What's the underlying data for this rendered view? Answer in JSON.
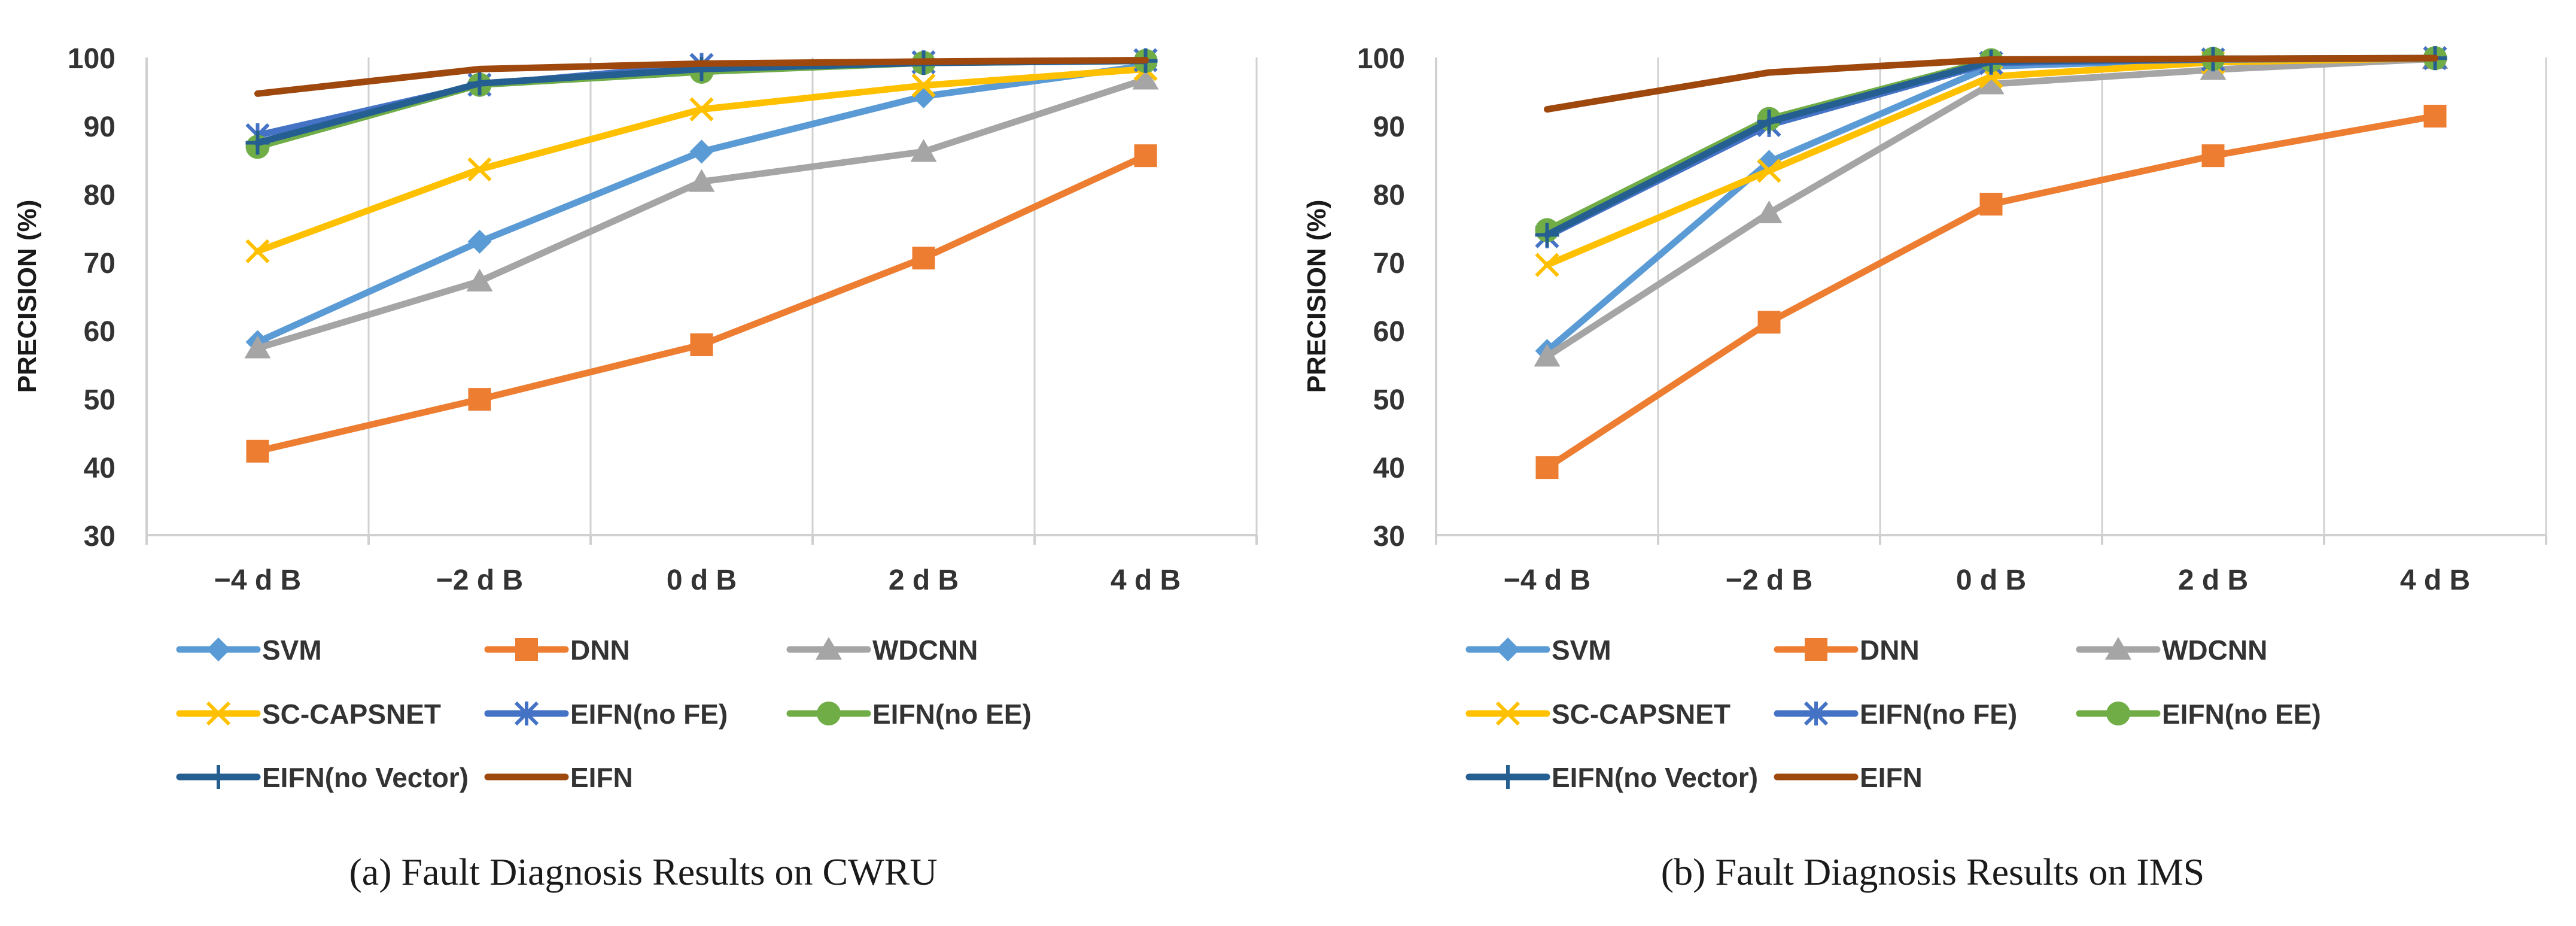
{
  "chart_data": [
    {
      "type": "line",
      "title": "",
      "caption": "(a) Fault Diagnosis Results on CWRU",
      "xlabel": "",
      "ylabel": "PRECISION (%)",
      "categories": [
        "−4 d B",
        "−2 d B",
        "0 d B",
        "2 d B",
        "4 d B"
      ],
      "ylim": [
        30,
        100
      ],
      "yticks": [
        30,
        40,
        50,
        60,
        70,
        80,
        90,
        100
      ],
      "grid": "vertical",
      "legend_position": "bottom",
      "series": [
        {
          "name": "SVM",
          "color": "#5B9BD5",
          "marker": "diamond",
          "values": [
            58.3,
            73.0,
            86.2,
            94.3,
            98.8
          ]
        },
        {
          "name": "DNN",
          "color": "#ED7D31",
          "marker": "square",
          "values": [
            42.3,
            49.9,
            57.9,
            70.6,
            85.6
          ]
        },
        {
          "name": "WDCNN",
          "color": "#A5A5A5",
          "marker": "triangle",
          "values": [
            57.4,
            67.2,
            81.8,
            86.2,
            96.8
          ]
        },
        {
          "name": "SC-CAPSNET",
          "color": "#FFC000",
          "marker": "x",
          "values": [
            71.6,
            83.6,
            92.4,
            95.9,
            98.3
          ]
        },
        {
          "name": "EIFN(no FE)",
          "color": "#4472C4",
          "marker": "star",
          "values": [
            88.6,
            96.0,
            98.9,
            99.3,
            99.6
          ]
        },
        {
          "name": "EIFN(no EE)",
          "color": "#70AD47",
          "marker": "circle",
          "values": [
            86.9,
            96.0,
            97.9,
            99.2,
            99.5
          ]
        },
        {
          "name": "EIFN(no Vector)",
          "color": "#255E91",
          "marker": "plus",
          "values": [
            87.5,
            96.2,
            98.3,
            99.2,
            99.5
          ]
        },
        {
          "name": "EIFN",
          "color": "#9E480E",
          "marker": "none",
          "values": [
            94.7,
            98.3,
            99.1,
            99.4,
            99.6
          ]
        }
      ]
    },
    {
      "type": "line",
      "title": "",
      "caption": "(b) Fault Diagnosis Results on IMS",
      "xlabel": "",
      "ylabel": "PRECISION (%)",
      "categories": [
        "−4 d B",
        "−2 d B",
        "0 d B",
        "2 d B",
        "4 d B"
      ],
      "ylim": [
        30,
        100
      ],
      "yticks": [
        30,
        40,
        50,
        60,
        70,
        80,
        90,
        100
      ],
      "grid": "vertical",
      "legend_position": "bottom",
      "series": [
        {
          "name": "SVM",
          "color": "#5B9BD5",
          "marker": "diamond",
          "values": [
            57.0,
            84.7,
            98.7,
            99.7,
            99.9
          ]
        },
        {
          "name": "DNN",
          "color": "#ED7D31",
          "marker": "square",
          "values": [
            39.9,
            61.2,
            78.5,
            85.6,
            91.4
          ]
        },
        {
          "name": "WDCNN",
          "color": "#A5A5A5",
          "marker": "triangle",
          "values": [
            56.2,
            77.2,
            96.1,
            98.2,
            99.8
          ]
        },
        {
          "name": "SC-CAPSNET",
          "color": "#FFC000",
          "marker": "x",
          "values": [
            69.6,
            83.4,
            97.2,
            99.3,
            99.9
          ]
        },
        {
          "name": "EIFN(no FE)",
          "color": "#4472C4",
          "marker": "star",
          "values": [
            73.8,
            90.1,
            99.2,
            99.7,
            99.9
          ]
        },
        {
          "name": "EIFN(no EE)",
          "color": "#70AD47",
          "marker": "circle",
          "values": [
            74.7,
            91.0,
            99.6,
            99.8,
            99.9
          ]
        },
        {
          "name": "EIFN(no Vector)",
          "color": "#255E91",
          "marker": "plus",
          "values": [
            74.0,
            90.6,
            99.4,
            99.8,
            99.9
          ]
        },
        {
          "name": "EIFN",
          "color": "#9E480E",
          "marker": "none",
          "values": [
            92.4,
            97.8,
            99.7,
            99.8,
            99.9
          ]
        }
      ]
    }
  ]
}
